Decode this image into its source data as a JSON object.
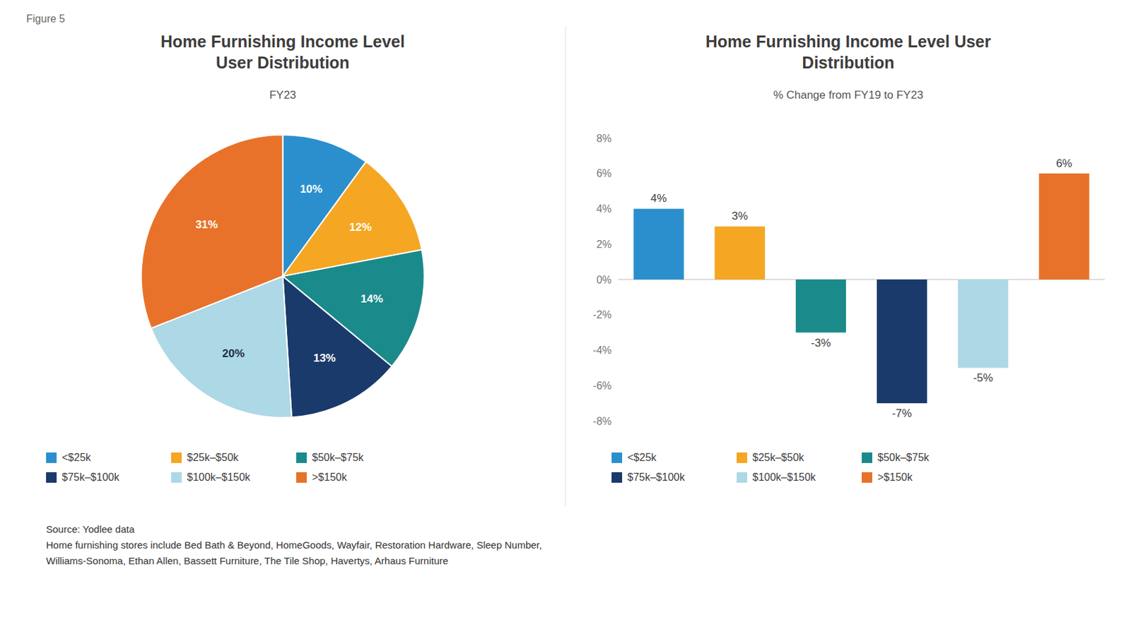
{
  "figure_label": "Figure 5",
  "source": "Source: Yodlee data\nHome furnishing stores include Bed Bath & Beyond, HomeGoods, Wayfair, Restoration Hardware, Sleep Number,\nWilliams-Sonoma, Ethan Allen, Bassett Furniture, The Tile Shop, Havertys, Arhaus Furniture",
  "chart_data": [
    {
      "type": "pie",
      "title": "Home Furnishing Income Level\nUser Distribution",
      "subtitle": "FY23",
      "categories": [
        "<$25k",
        "$25k–$50k",
        "$50k–$75k",
        "$75k–$100k",
        "$100k–$150k",
        ">$150k"
      ],
      "values": [
        10,
        12,
        14,
        13,
        20,
        31
      ],
      "value_labels": [
        "10%",
        "12%",
        "14%",
        "13%",
        "20%",
        "31%"
      ],
      "colors": [
        "#2b8fce",
        "#f5a623",
        "#1a8a8a",
        "#1a3a6b",
        "#add8e6",
        "#e8722a"
      ],
      "data_labels": true,
      "legend": "bottom"
    },
    {
      "type": "bar",
      "title": "Home Furnishing Income Level User\nDistribution",
      "subtitle": "% Change from FY19 to FY23",
      "categories": [
        "<$25k",
        "$25k–$50k",
        "$50k–$75k",
        "$75k–$100k",
        "$100k–$150k",
        ">$150k"
      ],
      "values": [
        4,
        3,
        -3,
        -7,
        -5,
        6
      ],
      "value_labels": [
        "4%",
        "3%",
        "-3%",
        "-7%",
        "-5%",
        "6%"
      ],
      "colors": [
        "#2b8fce",
        "#f5a623",
        "#1a8a8a",
        "#1a3a6b",
        "#add8e6",
        "#e8722a"
      ],
      "ylim": [
        -8,
        8
      ],
      "yticks": [
        {
          "value": -8,
          "label": "-8%"
        },
        {
          "value": -6,
          "label": "-6%"
        },
        {
          "value": -4,
          "label": "-4%"
        },
        {
          "value": -2,
          "label": "-2%"
        },
        {
          "value": 0,
          "label": "0%"
        },
        {
          "value": 2,
          "label": "2%"
        },
        {
          "value": 4,
          "label": "4%"
        },
        {
          "value": 6,
          "label": "6%"
        },
        {
          "value": 8,
          "label": "8%"
        }
      ],
      "data_labels": true,
      "tick_labels": "y",
      "grid": false,
      "legend": "bottom"
    }
  ]
}
